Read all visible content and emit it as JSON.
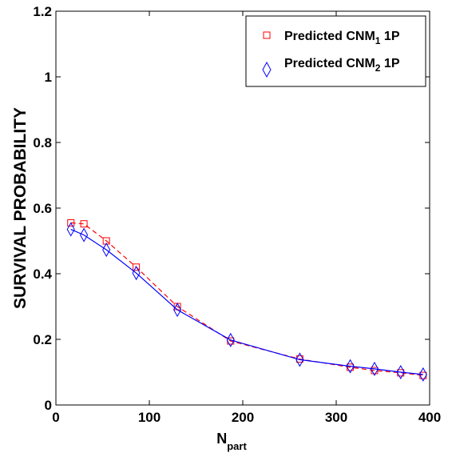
{
  "chart_data": {
    "type": "line",
    "title": "",
    "xlabel": {
      "main": "N",
      "sub": "part"
    },
    "ylabel": "SURVIVAL PROBABILITY",
    "xlim": [
      0,
      400
    ],
    "ylim": [
      0,
      1.2
    ],
    "x_ticks": [
      0,
      100,
      200,
      300,
      400
    ],
    "y_ticks": [
      0,
      0.2,
      0.4,
      0.6,
      0.8,
      1,
      1.2
    ],
    "x_tick_labels": [
      "0",
      "100",
      "200",
      "300",
      "400"
    ],
    "y_tick_labels": [
      "0",
      "0.2",
      "0.4",
      "0.6",
      "0.8",
      "1",
      "1.2"
    ],
    "grid": false,
    "legend_position": "top-right",
    "series": [
      {
        "name": {
          "main": "Predicted CNM",
          "sub": "1",
          "suffix": " 1P"
        },
        "marker": "square",
        "line_style": "dashed",
        "color": "#ff0000",
        "x": [
          16,
          30,
          54,
          86,
          130,
          187,
          261,
          315,
          341,
          369,
          393
        ],
        "y": [
          0.555,
          0.552,
          0.5,
          0.42,
          0.3,
          0.195,
          0.14,
          0.115,
          0.105,
          0.098,
          0.09
        ]
      },
      {
        "name": {
          "main": "Predicted CNM",
          "sub": "2",
          "suffix": " 1P"
        },
        "marker": "diamond",
        "line_style": "solid",
        "color": "#0000ff",
        "x": [
          16,
          30,
          54,
          86,
          130,
          187,
          261,
          315,
          341,
          369,
          393
        ],
        "y": [
          0.535,
          0.518,
          0.473,
          0.402,
          0.29,
          0.198,
          0.138,
          0.118,
          0.11,
          0.1,
          0.093
        ]
      }
    ]
  }
}
